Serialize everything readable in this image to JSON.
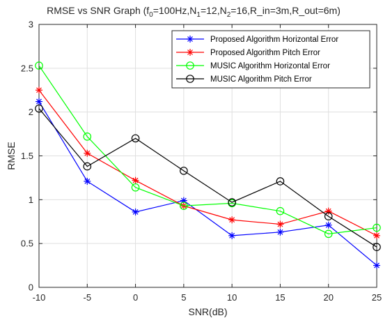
{
  "chart_data": {
    "type": "line",
    "title": {
      "parts": [
        {
          "t": "RMSE vs SNR Graph (f"
        },
        {
          "t": "0",
          "sub": true
        },
        {
          "t": "=100Hz,N"
        },
        {
          "t": "1",
          "sub": true
        },
        {
          "t": "=12,N"
        },
        {
          "t": "2",
          "sub": true
        },
        {
          "t": "=16,R_in=3m,R_out=6m)"
        }
      ]
    },
    "xlabel": "SNR(dB)",
    "ylabel": "RMSE",
    "xlim": [
      -10,
      25
    ],
    "ylim": [
      0,
      3
    ],
    "xticks": [
      -10,
      -5,
      0,
      5,
      10,
      15,
      20,
      25
    ],
    "yticks": [
      0,
      0.5,
      1,
      1.5,
      2,
      2.5,
      3
    ],
    "yticklabels": [
      "0",
      "0.5",
      "1",
      "1.5",
      "2",
      "2.5",
      "3"
    ],
    "grid": true,
    "legend_position": "top-right",
    "x": [
      -10,
      -5,
      0,
      5,
      10,
      15,
      20,
      25
    ],
    "series": [
      {
        "name": "Proposed Algorithm Horizontal Error",
        "color": "#0000ff",
        "marker": "asterisk",
        "values": [
          2.12,
          1.21,
          0.86,
          0.99,
          0.59,
          0.63,
          0.71,
          0.25
        ]
      },
      {
        "name": "Proposed Algorithm Pitch Error",
        "color": "#ff0000",
        "marker": "asterisk",
        "values": [
          2.25,
          1.53,
          1.22,
          0.93,
          0.77,
          0.72,
          0.87,
          0.59
        ]
      },
      {
        "name": "MUSIC Algorithm Horizontal Error",
        "color": "#00ff00",
        "marker": "circle",
        "values": [
          2.53,
          1.72,
          1.14,
          0.93,
          0.96,
          0.87,
          0.61,
          0.68
        ]
      },
      {
        "name": "MUSIC Algorithm Pitch Error",
        "color": "#000000",
        "marker": "circle",
        "values": [
          2.04,
          1.38,
          1.7,
          1.33,
          0.97,
          1.21,
          0.81,
          0.46
        ]
      }
    ]
  }
}
